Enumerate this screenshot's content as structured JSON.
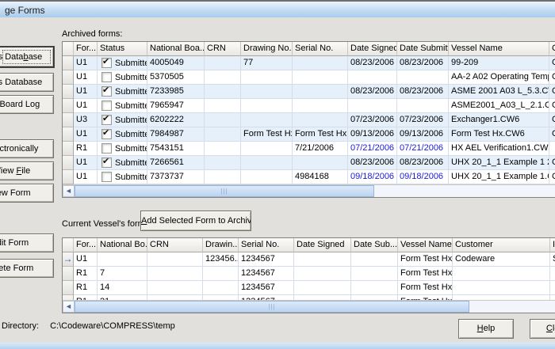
{
  "window": {
    "title": "ge Forms"
  },
  "colors": {
    "titlebar_blue": "#C3DCF4",
    "row_stripe_blue": "#E5F0FB",
    "date_link_blue": "#1A1AD6",
    "scroll_thumb_blue": "#BCD4F0",
    "selection_arrow_blue": "#2653B8"
  },
  "sidebar": {
    "buttons": [
      {
        "label_html": "orms Data<u>b</u>ase"
      },
      {
        "label_html": "orms Database"
      },
      {
        "label_html": "nal Board Log"
      },
      {
        "label_html": "<u>E</u>lectronically"
      },
      {
        "label_html": "View <u>F</u>ile"
      },
      {
        "label_html": "iew Form"
      },
      {
        "label_html": "dit Form"
      },
      {
        "label_html": "elete Form"
      }
    ]
  },
  "archived": {
    "label": "Archived forms:",
    "columns": [
      "",
      "For...",
      "Status",
      "National Boa...",
      "CRN",
      "Drawing No.",
      "Serial No.",
      "Date Signed",
      "Date Submitted",
      "Vessel Name",
      "C"
    ],
    "rows": [
      {
        "form": "U1",
        "checked": true,
        "status": "Submitted",
        "national_board": "4005049",
        "crn": "",
        "drawing": "77",
        "serial": "",
        "date_signed": "08/23/2006",
        "date_submitted": "08/23/2006",
        "dates_blue": false,
        "vessel": "99-209",
        "customer": "Codeware",
        "striped": true
      },
      {
        "form": "U1",
        "checked": false,
        "status": "Submitted",
        "national_board": "5370505",
        "crn": "",
        "drawing": "",
        "serial": "",
        "date_signed": "",
        "date_submitted": "",
        "dates_blue": false,
        "vessel": "AA-2 A02 Operating Temp...",
        "customer": "Codeware",
        "striped": false
      },
      {
        "form": "U1",
        "checked": true,
        "status": "Submitted",
        "national_board": "7233985",
        "crn": "",
        "drawing": "",
        "serial": "",
        "date_signed": "08/23/2006",
        "date_submitted": "08/23/2006",
        "dates_blue": false,
        "vessel": "ASME 2001 A03 L_5.3.CW6",
        "customer": "Codeware",
        "striped": true
      },
      {
        "form": "U1",
        "checked": false,
        "status": "Submitted",
        "national_board": "7965947",
        "crn": "",
        "drawing": "",
        "serial": "",
        "date_signed": "",
        "date_submitted": "",
        "dates_blue": false,
        "vessel": "ASME2001_A03_L_2.1.CW6",
        "customer": "Codeware",
        "striped": false
      },
      {
        "form": "U3",
        "checked": true,
        "status": "Submitted",
        "national_board": "6202222",
        "crn": "",
        "drawing": "",
        "serial": "",
        "date_signed": "07/23/2006",
        "date_submitted": "07/23/2006",
        "dates_blue": false,
        "vessel": "Exchanger1.CW6",
        "customer": "Codeware",
        "striped": true
      },
      {
        "form": "U1",
        "checked": true,
        "status": "Submitted",
        "national_board": "7984987",
        "crn": "",
        "drawing": "Form Test Hx",
        "serial": "Form Test Hx",
        "date_signed": "09/13/2006",
        "date_submitted": "09/13/2006",
        "dates_blue": false,
        "vessel": "Form Test Hx.CW6",
        "customer": "Codeware",
        "striped": true
      },
      {
        "form": "R1",
        "checked": false,
        "status": "Submitted",
        "national_board": "7543151",
        "crn": "",
        "drawing": "",
        "serial": "7/21/2006",
        "date_signed": "07/21/2006",
        "date_submitted": "07/21/2006",
        "dates_blue": true,
        "vessel": "HX AEL Verification1.CW6",
        "customer": "",
        "striped": false
      },
      {
        "form": "U1",
        "checked": true,
        "status": "Submitted",
        "national_board": "7266561",
        "crn": "",
        "drawing": "",
        "serial": "",
        "date_signed": "08/23/2006",
        "date_submitted": "08/23/2006",
        "dates_blue": false,
        "vessel": "UHX 20_1_1 Example 1 20...",
        "customer": "Codeware",
        "striped": true
      },
      {
        "form": "U1",
        "checked": false,
        "status": "Submitted",
        "national_board": "7373737",
        "crn": "",
        "drawing": "",
        "serial": "4984168",
        "date_signed": "09/18/2006",
        "date_submitted": "09/18/2006",
        "dates_blue": true,
        "vessel": "UHX 20_1_1 Example 1.CW6",
        "customer": "Codeware",
        "striped": false
      }
    ]
  },
  "current": {
    "label": "Current Vessel's forms:",
    "add_button_html": "<u>A</u>dd Selected Form to Archive",
    "columns": [
      "",
      "For...",
      "National Bo...",
      "CRN",
      "Drawin...",
      "Serial No.",
      "Date Signed",
      "Date Sub...",
      "Vessel Name",
      "Customer",
      "In"
    ],
    "rows": [
      {
        "selected": true,
        "form": "U1",
        "national_board": "",
        "crn": "",
        "drawing": "123456...",
        "serial": "1234567",
        "date_signed": "",
        "date_submitted": "",
        "vessel": "Form Test Hx",
        "customer": "Codeware",
        "extra": "Sc"
      },
      {
        "selected": false,
        "form": "R1",
        "national_board": "7",
        "crn": "",
        "drawing": "",
        "serial": "1234567",
        "date_signed": "",
        "date_submitted": "",
        "vessel": "Form Test Hx",
        "customer": "",
        "extra": ""
      },
      {
        "selected": false,
        "form": "R1",
        "national_board": "14",
        "crn": "",
        "drawing": "",
        "serial": "1234567",
        "date_signed": "",
        "date_submitted": "",
        "vessel": "Form Test Hx",
        "customer": "",
        "extra": ""
      },
      {
        "selected": false,
        "form": "R1",
        "national_board": "21",
        "crn": "",
        "drawing": "",
        "serial": "1234567",
        "date_signed": "",
        "date_submitted": "",
        "vessel": "Form Test Hx",
        "customer": "",
        "extra": ""
      }
    ]
  },
  "footer": {
    "directory_label": "Directory:",
    "directory_value": "C:\\Codeware\\COMPRESS\\temp",
    "help_html": "<u>H</u>elp",
    "close_html": "<u>C</u>lose"
  }
}
